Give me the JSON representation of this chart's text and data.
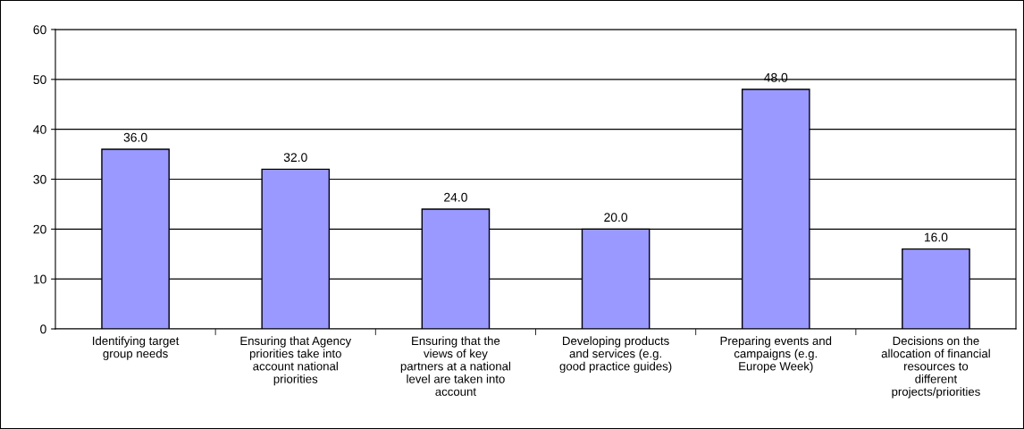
{
  "chart_data": {
    "type": "bar",
    "categories": [
      "Identifying target\ngroup needs",
      "Ensuring that Agency\npriorities take into\naccount national\npriorities",
      "Ensuring that the\nviews of key\npartners at a national\nlevel are taken into\naccount",
      "Developing products\nand services (e.g.\ngood practice guides)",
      "Preparing events and\ncampaigns (e.g.\nEurope Week)",
      "Decisions on the\nallocation of financial\nresources to\ndifferent\nprojects/priorities"
    ],
    "values": [
      36,
      32,
      24,
      20,
      48,
      16
    ],
    "value_labels": [
      "36.0",
      "32.0",
      "24.0",
      "20.0",
      "48.0",
      "16.0"
    ],
    "color": "#9999ff",
    "ylim": [
      0,
      60
    ],
    "yticks": [
      0,
      10,
      20,
      30,
      40,
      50,
      60
    ],
    "grid": "y"
  }
}
